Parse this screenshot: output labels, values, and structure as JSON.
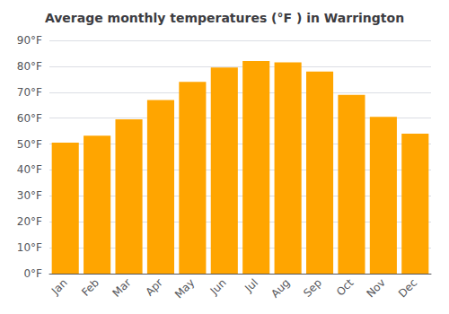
{
  "chart_data": {
    "type": "bar",
    "title": "Average monthly temperatures (°F ) in Warrington",
    "categories": [
      "Jan",
      "Feb",
      "Mar",
      "Apr",
      "May",
      "Jun",
      "Jul",
      "Aug",
      "Sep",
      "Oct",
      "Nov",
      "Dec"
    ],
    "values": [
      50.5,
      53.2,
      59.5,
      67.0,
      74.0,
      79.5,
      82.0,
      81.5,
      78.0,
      69.0,
      60.5,
      54.0
    ],
    "color": "#FFA500",
    "ylim": [
      0,
      90
    ],
    "yticks": [
      {
        "value": 0,
        "label": "0°F"
      },
      {
        "value": 10,
        "label": "10°F"
      },
      {
        "value": 20,
        "label": "20°F"
      },
      {
        "value": 30,
        "label": "30°F"
      },
      {
        "value": 40,
        "label": "40°F"
      },
      {
        "value": 50,
        "label": "50°F"
      },
      {
        "value": 60,
        "label": "60°F"
      },
      {
        "value": 70,
        "label": "70°F"
      },
      {
        "value": 80,
        "label": "80°F"
      },
      {
        "value": 90,
        "label": "90°F"
      }
    ],
    "grid": true
  }
}
